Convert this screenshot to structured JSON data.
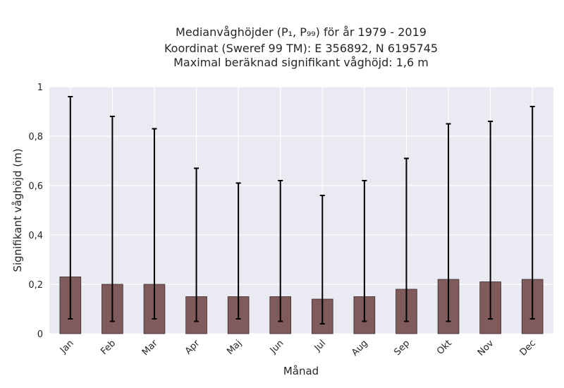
{
  "chart_data": {
    "type": "bar",
    "title_lines": [
      "Medianvåghöjder (P₁, P₉₉) för år 1979 - 2019",
      "Koordinat (Sweref 99 TM): E 356892, N 6195745",
      "Maximal beräknad signifikant våghöjd: 1,6 m"
    ],
    "xlabel": "Månad",
    "ylabel": "Signifikant våghöjd (m)",
    "categories": [
      "Jan",
      "Feb",
      "Mar",
      "Apr",
      "Maj",
      "Jun",
      "Jul",
      "Aug",
      "Sep",
      "Okt",
      "Nov",
      "Dec"
    ],
    "values": [
      0.23,
      0.2,
      0.2,
      0.15,
      0.15,
      0.15,
      0.14,
      0.15,
      0.18,
      0.22,
      0.21,
      0.22
    ],
    "p1": [
      0.06,
      0.05,
      0.06,
      0.05,
      0.06,
      0.05,
      0.04,
      0.05,
      0.05,
      0.05,
      0.06,
      0.06
    ],
    "p99": [
      0.96,
      0.88,
      0.83,
      0.67,
      0.61,
      0.62,
      0.56,
      0.62,
      0.71,
      0.85,
      0.86,
      0.92
    ],
    "ylim": [
      0,
      1
    ],
    "yticks": [
      0,
      0.2,
      0.4,
      0.6,
      0.8,
      1
    ],
    "ytick_labels": [
      "0",
      "0,2",
      "0,4",
      "0,6",
      "0,8",
      "1"
    ],
    "grid": true,
    "colors": {
      "bar": "#7f5b5c",
      "bar_edge": "#3b2a2a",
      "errorbar": "#000000",
      "plot_bg": "#eaeaf2",
      "grid": "#ffffff"
    }
  }
}
